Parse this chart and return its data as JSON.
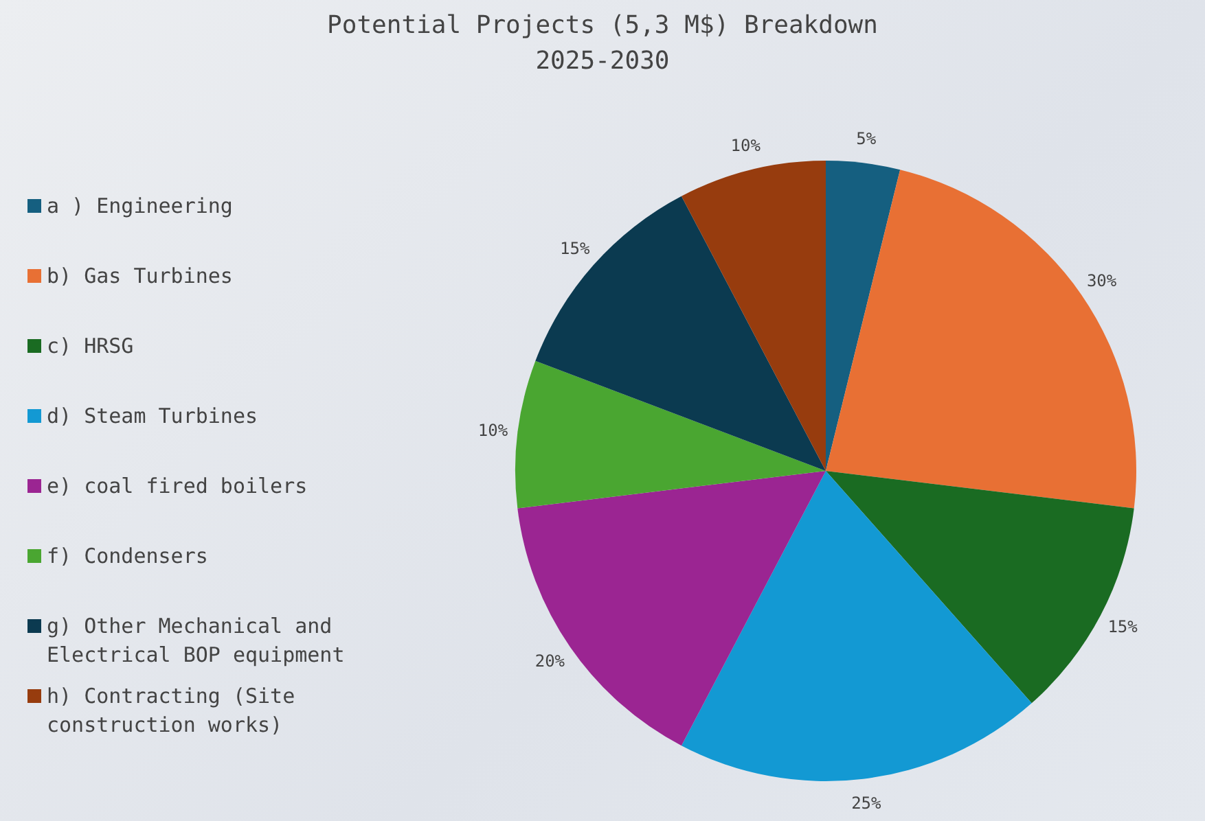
{
  "chart_data": {
    "type": "pie",
    "title": "Potential Projects (5,3 M$) Breakdown\n2025-2030",
    "categories": [
      "a ) Engineering",
      "b) Gas Turbines",
      "c) HRSG",
      "d) Steam Turbines",
      "e) coal fired boilers",
      "f) Condensers",
      "g) Other Mechanical and Electrical BOP equipment",
      "h) Contracting (Site construction works)"
    ],
    "values": [
      5,
      30,
      15,
      25,
      20,
      10,
      15,
      10
    ],
    "colors": [
      "#155f80",
      "#e87034",
      "#1a6b22",
      "#1399d3",
      "#9b2592",
      "#4aa631",
      "#0b3a50",
      "#973c0e"
    ],
    "value_labels": [
      "5%",
      "30%",
      "15%",
      "25%",
      "20%",
      "10%",
      "15%",
      "10%"
    ],
    "legend": "left"
  }
}
